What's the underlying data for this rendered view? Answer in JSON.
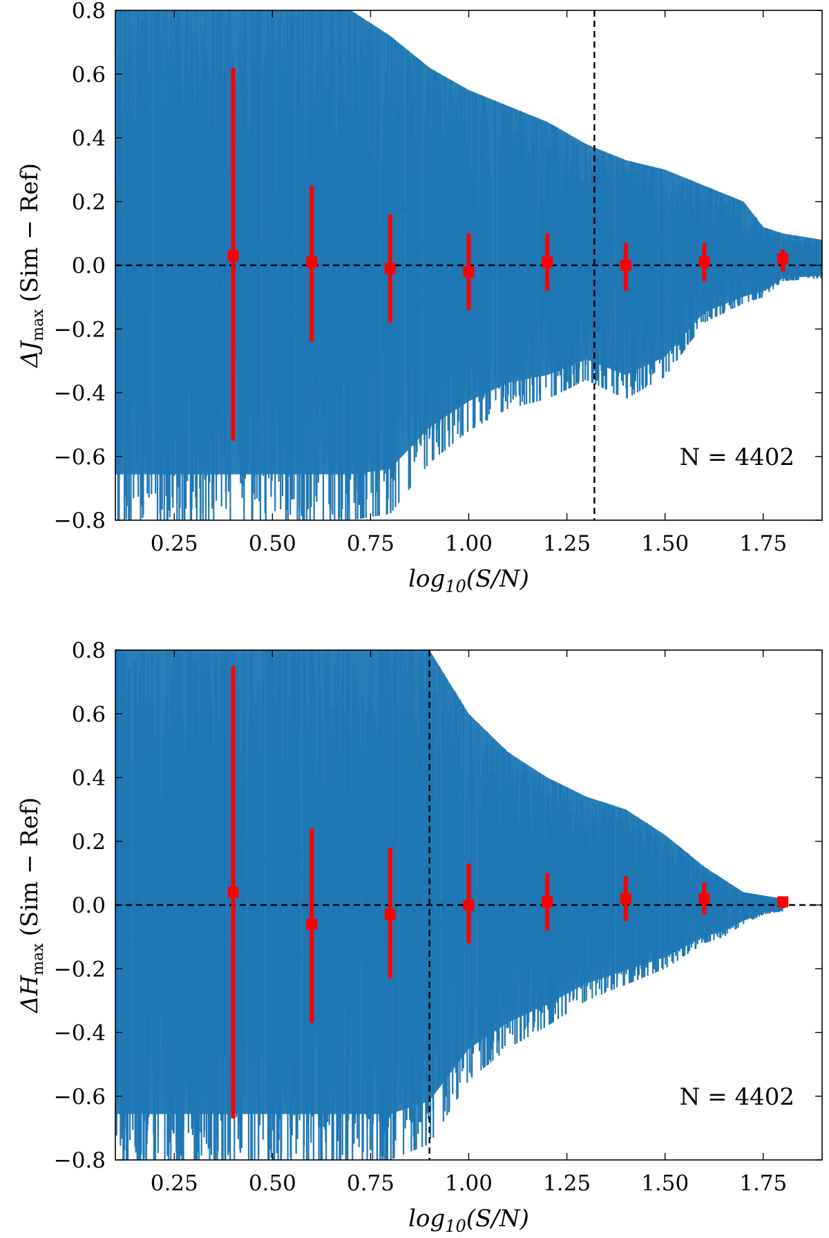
{
  "chart_data": [
    {
      "type": "scatter",
      "xlabel": "log10(S/N)",
      "ylabel": "ΔJmax (Sim − Ref)",
      "ylabel_symbol": "ΔJ",
      "ylabel_sub": "max",
      "ylabel_rest": "(Sim − Ref)",
      "annotation": "N = 4402",
      "xlim": [
        0.1,
        1.9
      ],
      "ylim": [
        -0.8,
        0.8
      ],
      "xticks": [
        "0.25",
        "0.50",
        "0.75",
        "1.00",
        "1.25",
        "1.50",
        "1.75"
      ],
      "yticks": [
        "−0.8",
        "−0.6",
        "−0.4",
        "−0.2",
        "0.0",
        "0.2",
        "0.4",
        "0.6",
        "0.8"
      ],
      "hline": 0.0,
      "vline": 1.32,
      "colors": {
        "points": "#1f77b4",
        "binned": "#ff0000",
        "reference": "#000000"
      },
      "envelope": {
        "x": [
          0.1,
          0.2,
          0.3,
          0.4,
          0.5,
          0.6,
          0.7,
          0.8,
          0.9,
          1.0,
          1.1,
          1.2,
          1.3,
          1.4,
          1.5,
          1.6,
          1.7,
          1.75,
          1.8,
          1.9
        ],
        "high": [
          0.8,
          0.8,
          0.8,
          0.8,
          0.8,
          0.8,
          0.8,
          0.72,
          0.62,
          0.55,
          0.5,
          0.45,
          0.38,
          0.33,
          0.3,
          0.25,
          0.2,
          0.12,
          0.1,
          0.08
        ],
        "low": [
          -0.8,
          -0.8,
          -0.8,
          -0.8,
          -0.8,
          -0.8,
          -0.8,
          -0.78,
          -0.62,
          -0.52,
          -0.45,
          -0.42,
          -0.36,
          -0.42,
          -0.35,
          -0.18,
          -0.12,
          -0.1,
          -0.05,
          -0.04
        ]
      },
      "binned": [
        {
          "x": 0.4,
          "y": 0.03,
          "yerr_low": -0.55,
          "yerr_high": 0.62
        },
        {
          "x": 0.6,
          "y": 0.01,
          "yerr_low": -0.24,
          "yerr_high": 0.25
        },
        {
          "x": 0.8,
          "y": -0.01,
          "yerr_low": -0.18,
          "yerr_high": 0.16
        },
        {
          "x": 1.0,
          "y": -0.02,
          "yerr_low": -0.14,
          "yerr_high": 0.1
        },
        {
          "x": 1.2,
          "y": 0.01,
          "yerr_low": -0.08,
          "yerr_high": 0.1
        },
        {
          "x": 1.4,
          "y": 0.0,
          "yerr_low": -0.08,
          "yerr_high": 0.07
        },
        {
          "x": 1.6,
          "y": 0.01,
          "yerr_low": -0.05,
          "yerr_high": 0.07
        },
        {
          "x": 1.8,
          "y": 0.02,
          "yerr_low": -0.02,
          "yerr_high": 0.05
        }
      ]
    },
    {
      "type": "scatter",
      "xlabel": "log10(S/N)",
      "ylabel": "ΔHmax (Sim − Ref)",
      "ylabel_symbol": "ΔH",
      "ylabel_sub": "max",
      "ylabel_rest": "(Sim − Ref)",
      "annotation": "N = 4402",
      "xlim": [
        0.1,
        1.9
      ],
      "ylim": [
        -0.8,
        0.8
      ],
      "xticks": [
        "0.25",
        "0.50",
        "0.75",
        "1.00",
        "1.25",
        "1.50",
        "1.75"
      ],
      "yticks": [
        "−0.8",
        "−0.6",
        "−0.4",
        "−0.2",
        "0.0",
        "0.2",
        "0.4",
        "0.6",
        "0.8"
      ],
      "hline": 0.0,
      "vline": 0.9,
      "colors": {
        "points": "#1f77b4",
        "binned": "#ff0000",
        "reference": "#000000"
      },
      "envelope": {
        "x": [
          0.1,
          0.2,
          0.3,
          0.4,
          0.5,
          0.6,
          0.7,
          0.8,
          0.9,
          1.0,
          1.1,
          1.2,
          1.3,
          1.4,
          1.5,
          1.6,
          1.65,
          1.7,
          1.75,
          1.8
        ],
        "high": [
          0.8,
          0.8,
          0.8,
          0.8,
          0.8,
          0.8,
          0.8,
          0.8,
          0.8,
          0.6,
          0.48,
          0.4,
          0.34,
          0.3,
          0.22,
          0.12,
          0.08,
          0.04,
          0.03,
          0.02
        ],
        "low": [
          -0.8,
          -0.8,
          -0.8,
          -0.8,
          -0.8,
          -0.8,
          -0.8,
          -0.8,
          -0.75,
          -0.55,
          -0.45,
          -0.38,
          -0.3,
          -0.25,
          -0.2,
          -0.12,
          -0.1,
          -0.06,
          -0.03,
          -0.02
        ]
      },
      "binned": [
        {
          "x": 0.4,
          "y": 0.04,
          "yerr_low": -0.67,
          "yerr_high": 0.75
        },
        {
          "x": 0.6,
          "y": -0.06,
          "yerr_low": -0.37,
          "yerr_high": 0.24
        },
        {
          "x": 0.8,
          "y": -0.03,
          "yerr_low": -0.23,
          "yerr_high": 0.18
        },
        {
          "x": 1.0,
          "y": 0.0,
          "yerr_low": -0.12,
          "yerr_high": 0.13
        },
        {
          "x": 1.2,
          "y": 0.01,
          "yerr_low": -0.08,
          "yerr_high": 0.1
        },
        {
          "x": 1.4,
          "y": 0.02,
          "yerr_low": -0.05,
          "yerr_high": 0.09
        },
        {
          "x": 1.6,
          "y": 0.02,
          "yerr_low": -0.03,
          "yerr_high": 0.07
        },
        {
          "x": 1.8,
          "y": 0.01,
          "yerr_low": -0.01,
          "yerr_high": 0.01
        }
      ]
    }
  ]
}
